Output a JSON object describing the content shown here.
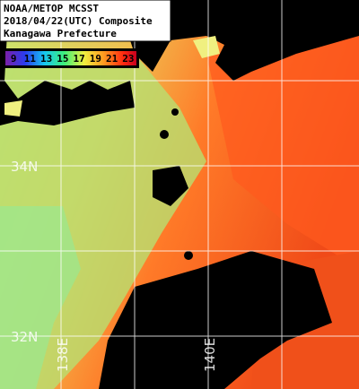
{
  "header": {
    "lines": [
      "NOAA/METOP MCSST",
      "2018/04/22(UTC) Composite",
      "Kanagawa Prefecture"
    ]
  },
  "colorbar": {
    "labels": [
      "9",
      "11",
      "13",
      "15",
      "17",
      "19",
      "21",
      "23"
    ]
  },
  "grid_labels": {
    "latitude": [
      "34N",
      "32N"
    ],
    "longitude": [
      "138E",
      "140E"
    ]
  }
}
